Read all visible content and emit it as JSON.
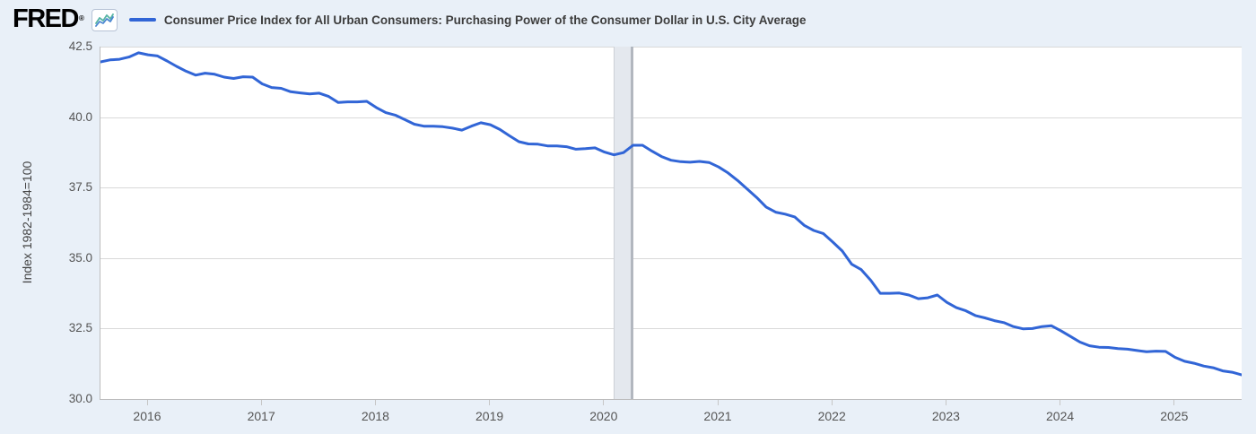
{
  "header": {
    "logo_text": "FRED",
    "registered_mark": "®"
  },
  "chart_data": {
    "type": "line",
    "title": "Consumer Price Index for All Urban Consumers: Purchasing Power of the Consumer Dollar in U.S. City Average",
    "ylabel": "Index 1982-1984=100",
    "ylim": [
      30.0,
      42.5
    ],
    "y_tick_labels": [
      "42.5",
      "40.0",
      "37.5",
      "35.0",
      "32.5",
      "30.0"
    ],
    "x_tick_labels": [
      "2016",
      "2017",
      "2018",
      "2019",
      "2020",
      "2021",
      "2022",
      "2023",
      "2024",
      "2025"
    ],
    "x_range": {
      "start": "2015-08",
      "end": "2025-08"
    },
    "frequency": "monthly",
    "grid": "horizontal",
    "legend_position": "top",
    "recession_band": {
      "start": "2020-02",
      "end": "2020-04"
    },
    "series": [
      {
        "name": "Consumer Price Index for All Urban Consumers: Purchasing Power of the Consumer Dollar in U.S. City Average",
        "color": "#3165d6",
        "values": [
          41.96,
          42.03,
          42.05,
          42.13,
          42.28,
          42.21,
          42.17,
          41.99,
          41.8,
          41.63,
          41.49,
          41.56,
          41.52,
          41.42,
          41.37,
          41.43,
          41.42,
          41.18,
          41.05,
          41.02,
          40.9,
          40.86,
          40.82,
          40.85,
          40.73,
          40.52,
          40.54,
          40.54,
          40.56,
          40.34,
          40.16,
          40.07,
          39.91,
          39.75,
          39.68,
          39.68,
          39.66,
          39.61,
          39.54,
          39.68,
          39.8,
          39.73,
          39.56,
          39.34,
          39.13,
          39.05,
          39.04,
          38.98,
          38.98,
          38.95,
          38.86,
          38.88,
          38.91,
          38.76,
          38.66,
          38.74,
          39.0,
          39.0,
          38.79,
          38.6,
          38.47,
          38.42,
          38.4,
          38.43,
          38.39,
          38.23,
          38.02,
          37.75,
          37.45,
          37.15,
          36.81,
          36.63,
          36.56,
          36.46,
          36.16,
          35.98,
          35.87,
          35.57,
          35.25,
          34.78,
          34.59,
          34.21,
          33.75,
          33.75,
          33.76,
          33.69,
          33.56,
          33.59,
          33.69,
          33.43,
          33.24,
          33.13,
          32.96,
          32.88,
          32.78,
          32.71,
          32.57,
          32.49,
          32.5,
          32.57,
          32.6,
          32.42,
          32.22,
          32.02,
          31.89,
          31.84,
          31.83,
          31.79,
          31.77,
          31.72,
          31.68,
          31.7,
          31.69,
          31.48,
          31.34,
          31.27,
          31.17,
          31.11,
          31.0,
          30.95,
          30.86
        ]
      }
    ]
  },
  "colors": {
    "page_background": "#e9f0f8",
    "plot_background": "#ffffff",
    "line": "#3165d6",
    "gridline": "#d9d9d9",
    "axis_border": "#bcbcbc",
    "tick_mark": "#c6c6c6",
    "recession_band_fill": "#e4e8ee",
    "recession_band_left_edge": "#ccd0d7",
    "recession_band_right_edge": "#b2b7bf",
    "icon_line_teal": "#58b5a5",
    "icon_line_blue": "#4a86d1"
  }
}
